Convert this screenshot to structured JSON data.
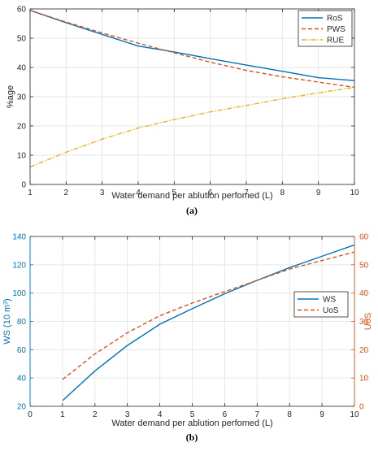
{
  "chart_data": [
    {
      "type": "line",
      "panel_label": "(a)",
      "xlabel": "Water demand per ablution perfomed (L)",
      "ylabel": "%age",
      "xlim": [
        1,
        10
      ],
      "ylim": [
        0,
        60
      ],
      "x_ticks": [
        1,
        2,
        3,
        4,
        5,
        6,
        7,
        8,
        9,
        10
      ],
      "y_ticks": [
        0,
        10,
        20,
        30,
        40,
        50,
        60
      ],
      "grid": true,
      "legend_position": "top-right",
      "x": [
        1,
        2,
        3,
        4,
        5,
        6,
        7,
        8,
        9,
        10
      ],
      "series": [
        {
          "name": "RoS",
          "color": "#0072BD",
          "style": "solid",
          "values": [
            59.5,
            55.3,
            51.3,
            47.3,
            45.3,
            43.0,
            40.8,
            38.7,
            36.5,
            35.5
          ]
        },
        {
          "name": "PWS",
          "color": "#D95319",
          "style": "dashed",
          "values": [
            59.5,
            55.5,
            51.8,
            48.3,
            45.0,
            41.8,
            39.0,
            36.8,
            35.0,
            33.2
          ]
        },
        {
          "name": "RUE",
          "color": "#EDB120",
          "style": "dashdot",
          "values": [
            6.0,
            11.0,
            15.5,
            19.3,
            22.2,
            24.8,
            27.0,
            29.3,
            31.3,
            33.2
          ]
        }
      ]
    },
    {
      "type": "line",
      "panel_label": "(b)",
      "xlabel": "Water demand per ablution perfomed (L)",
      "ylabel_left": "WS (10 m",
      "ylabel_left_sup": "3",
      "ylabel_left_end": ")",
      "ylabel_right": "UoS",
      "xlim": [
        0,
        10
      ],
      "ylim_left": [
        20,
        140
      ],
      "ylim_right": [
        0,
        60
      ],
      "x_ticks": [
        0,
        1,
        2,
        3,
        4,
        5,
        6,
        7,
        8,
        9,
        10
      ],
      "y_ticks_left": [
        20,
        40,
        60,
        80,
        100,
        120,
        140
      ],
      "y_ticks_right": [
        0,
        10,
        20,
        30,
        40,
        50,
        60
      ],
      "left_axis_color": "#0072BD",
      "right_axis_color": "#D95319",
      "grid": true,
      "legend_position": "center-right",
      "x": [
        1,
        2,
        3,
        4,
        5,
        6,
        7,
        8,
        9,
        10
      ],
      "series": [
        {
          "name": "WS",
          "axis": "left",
          "color": "#0072BD",
          "style": "solid",
          "values": [
            24,
            45,
            63,
            78,
            89,
            99.5,
            109,
            118,
            126,
            134
          ]
        },
        {
          "name": "UoS",
          "axis": "right",
          "color": "#D95319",
          "style": "dashed",
          "values": [
            9.5,
            18.5,
            26,
            32,
            36.5,
            40.5,
            44.5,
            48.5,
            51.5,
            54.5
          ]
        }
      ]
    }
  ]
}
